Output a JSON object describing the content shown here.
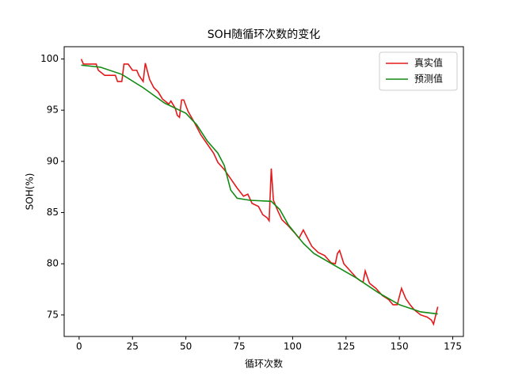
{
  "chart_data": {
    "type": "line",
    "title": "SOH随循环次数的变化",
    "xlabel": "循环次数",
    "ylabel": "SOH(%)",
    "xlim": [
      -7,
      180
    ],
    "ylim": [
      72.9,
      101.2
    ],
    "xticks": [
      0,
      25,
      50,
      75,
      100,
      125,
      150,
      175
    ],
    "yticks": [
      75,
      80,
      85,
      90,
      95,
      100
    ],
    "grid": false,
    "legend": "upper right",
    "series": [
      {
        "name": "真实值",
        "color": "#e31a1c",
        "x": [
          1,
          2,
          8,
          9,
          12,
          17,
          18,
          20,
          21,
          23,
          25,
          27,
          28,
          30,
          31,
          33,
          35,
          37,
          39,
          42,
          43,
          45,
          46,
          47,
          48,
          49,
          51,
          54,
          57,
          60,
          63,
          65,
          68,
          71,
          74,
          77,
          79,
          81,
          84,
          86,
          88,
          89,
          90,
          91,
          93,
          95,
          98,
          101,
          103,
          105,
          107,
          109,
          112,
          115,
          118,
          120,
          121,
          122,
          124,
          127,
          130,
          132,
          133,
          134,
          136,
          139,
          142,
          145,
          147,
          149,
          151,
          153,
          155,
          157,
          160,
          163,
          165,
          166,
          168
        ],
        "values": [
          100.0,
          99.5,
          99.5,
          98.9,
          98.4,
          98.4,
          97.8,
          97.8,
          99.5,
          99.5,
          98.9,
          98.9,
          98.4,
          97.8,
          99.6,
          98.0,
          97.2,
          96.8,
          96.1,
          95.6,
          95.9,
          95.2,
          94.5,
          94.3,
          96.0,
          96.0,
          94.9,
          93.8,
          92.6,
          91.7,
          90.8,
          89.9,
          89.2,
          88.3,
          87.4,
          86.6,
          86.8,
          85.9,
          85.6,
          84.8,
          84.5,
          84.2,
          89.3,
          86.2,
          85.2,
          84.3,
          83.7,
          83.0,
          82.5,
          83.3,
          82.5,
          81.7,
          81.1,
          80.8,
          80.1,
          80.0,
          81.0,
          81.3,
          80.0,
          79.3,
          78.6,
          78.3,
          78.2,
          79.3,
          78.1,
          77.6,
          76.9,
          76.5,
          76.0,
          76.0,
          77.6,
          76.6,
          76.0,
          75.5,
          75.0,
          74.8,
          74.5,
          74.1,
          75.8
        ]
      },
      {
        "name": "预测值",
        "color": "#138a13",
        "x": [
          1,
          10,
          20,
          30,
          40,
          50,
          55,
          60,
          65,
          68,
          71,
          74,
          80,
          90,
          94,
          98,
          105,
          110,
          120,
          130,
          140,
          150,
          160,
          168
        ],
        "values": [
          99.4,
          99.2,
          98.5,
          97.2,
          95.7,
          94.7,
          93.6,
          92.0,
          90.8,
          89.6,
          87.2,
          86.4,
          86.2,
          86.1,
          85.3,
          83.8,
          82.0,
          81.0,
          79.8,
          78.6,
          77.2,
          76.0,
          75.3,
          75.1
        ]
      }
    ]
  }
}
